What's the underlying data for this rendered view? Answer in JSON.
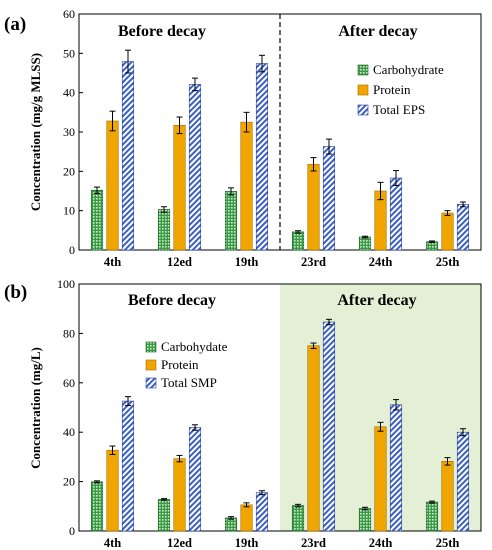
{
  "figure": {
    "panels": [
      {
        "id": "a",
        "panel_label": "(a)",
        "ylabel": "Concentration (mg/g MLSS)",
        "before_label": "Before decay",
        "after_label": "After decay"
      },
      {
        "id": "b",
        "panel_label": "(b)",
        "ylabel": "Concentration (mg/L)",
        "before_label": "Before decay",
        "after_label": "After decay"
      }
    ]
  },
  "colors": {
    "carbohydrate": "#3a9a48",
    "protein": "#f0a500",
    "total": "#3b5fc8",
    "after_bg": "#e4f0d6"
  },
  "chart_data": [
    {
      "type": "bar",
      "title": "",
      "panel": "(a)",
      "xlabel": "",
      "ylabel": "Concentration (mg/g MLSS)",
      "ylim": [
        0,
        60
      ],
      "yticks": [
        0,
        10,
        20,
        30,
        40,
        50,
        60
      ],
      "categories": [
        "4th",
        "12ed",
        "19th",
        "23rd",
        "24th",
        "25th"
      ],
      "series": [
        {
          "name": "Carbohydrate",
          "values": [
            15.2,
            10.3,
            14.9,
            4.6,
            3.3,
            2.1
          ],
          "errors": [
            0.8,
            0.7,
            0.9,
            0.3,
            0.2,
            0.2
          ]
        },
        {
          "name": "Protein",
          "values": [
            32.8,
            31.7,
            32.5,
            21.8,
            15.0,
            9.4
          ],
          "errors": [
            2.5,
            2.1,
            2.5,
            1.7,
            2.2,
            0.6
          ]
        },
        {
          "name": "Total EPS",
          "values": [
            47.9,
            42.1,
            47.4,
            26.3,
            18.3,
            11.6
          ],
          "errors": [
            2.9,
            1.6,
            2.1,
            1.9,
            1.9,
            0.6
          ]
        }
      ],
      "annotations": [
        "Before decay",
        "After decay"
      ],
      "legend": "right",
      "grid": false
    },
    {
      "type": "bar",
      "title": "",
      "panel": "(b)",
      "xlabel": "",
      "ylabel": "Concentration (mg/L)",
      "ylim": [
        0,
        100
      ],
      "yticks": [
        0,
        20,
        40,
        60,
        80,
        100
      ],
      "categories": [
        "4th",
        "12ed",
        "19th",
        "23rd",
        "24th",
        "25th"
      ],
      "series": [
        {
          "name": "Carbohydate",
          "values": [
            19.9,
            12.8,
            5.3,
            10.3,
            9.1,
            11.7
          ],
          "errors": [
            0.4,
            0.3,
            0.5,
            0.5,
            0.5,
            0.4
          ]
        },
        {
          "name": "Protein",
          "values": [
            32.7,
            29.3,
            10.6,
            75.0,
            42.2,
            28.2
          ],
          "errors": [
            1.7,
            1.3,
            0.8,
            1.1,
            1.8,
            1.5
          ]
        },
        {
          "name": "Total SMP",
          "values": [
            52.6,
            41.9,
            15.5,
            84.6,
            51.1,
            40.0
          ],
          "errors": [
            1.8,
            1.1,
            0.8,
            1.1,
            2.1,
            1.4
          ]
        }
      ],
      "annotations": [
        "Before decay",
        "After decay"
      ],
      "legend": "left",
      "grid": false
    }
  ]
}
